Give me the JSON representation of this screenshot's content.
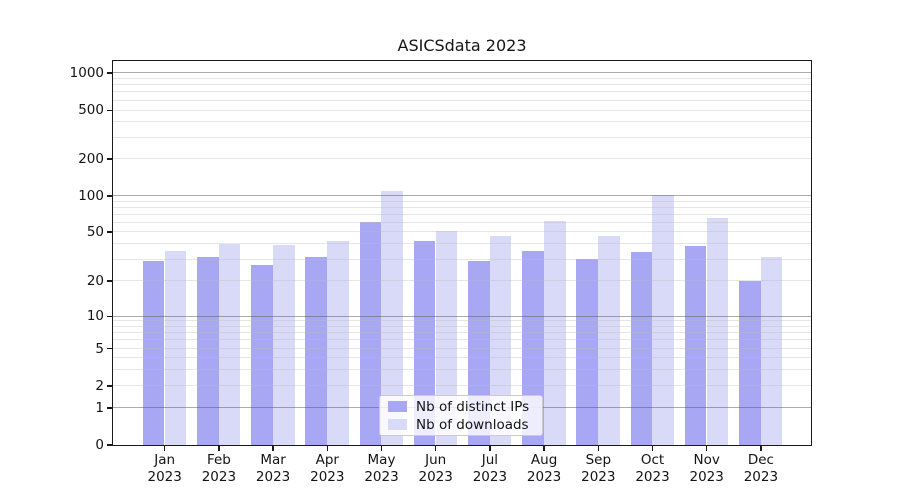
{
  "title": "ASICSdata 2023",
  "colors": {
    "bar_ips": "#a7a7f3",
    "bar_downloads": "#d9d9f8",
    "grid_major": "#b0b0b0",
    "grid_minor": "#e9e9e9",
    "spine": "#1a1a1a",
    "text": "#141414",
    "background": "#ffffff"
  },
  "chart_data": {
    "type": "bar",
    "title": "ASICSdata 2023",
    "categories": [
      "Jan",
      "Feb",
      "Mar",
      "Apr",
      "May",
      "Jun",
      "Jul",
      "Aug",
      "Sep",
      "Oct",
      "Nov",
      "Dec"
    ],
    "category_year": "2023",
    "series": [
      {
        "name": "Nb of distinct IPs",
        "color": "#a7a7f3",
        "values": [
          29,
          31,
          27,
          31,
          60,
          42,
          29,
          35,
          30,
          34,
          38,
          20
        ]
      },
      {
        "name": "Nb of downloads",
        "color": "#d9d9f8",
        "values": [
          35,
          40,
          39,
          42,
          110,
          51,
          46,
          61,
          46,
          102,
          65,
          31
        ]
      }
    ],
    "yscale": "symlog",
    "ylim": [
      0,
      1250
    ],
    "y_ticks": [
      0,
      1,
      2,
      5,
      10,
      20,
      50,
      100,
      200,
      500,
      1000
    ],
    "grid": "horizontal major+minor, drawn above bars",
    "legend_position": "lower center",
    "xlabel": "",
    "ylabel": ""
  }
}
